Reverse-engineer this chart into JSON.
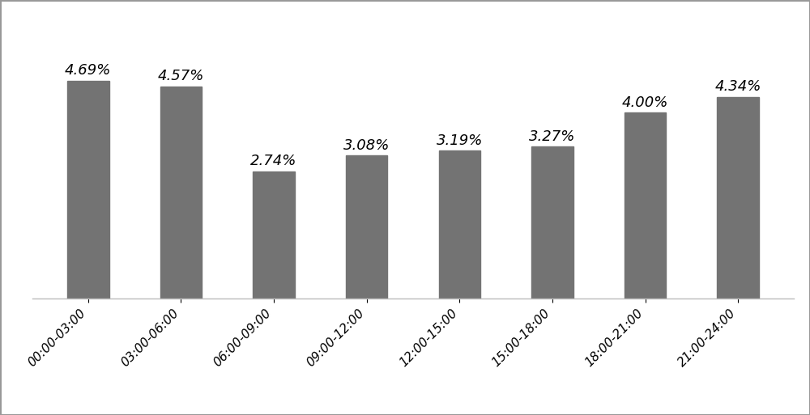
{
  "categories": [
    "00:00-03:00",
    "03:00-06:00",
    "06:00-09:00",
    "09:00-12:00",
    "12:00-15:00",
    "15:00-18:00",
    "18:00-21:00",
    "21:00-24:00"
  ],
  "values": [
    4.69,
    4.57,
    2.74,
    3.08,
    3.19,
    3.27,
    4.0,
    4.34
  ],
  "labels": [
    "4.69%",
    "4.57%",
    "2.74%",
    "3.08%",
    "3.19%",
    "3.27%",
    "4.00%",
    "4.34%"
  ],
  "bar_color": "#737373",
  "background_color": "#ffffff",
  "figure_bg": "#ffffff",
  "border_color": "#999999",
  "ylim": [
    0,
    5.8
  ],
  "label_fontsize": 13,
  "tick_fontsize": 11,
  "bar_width": 0.45
}
